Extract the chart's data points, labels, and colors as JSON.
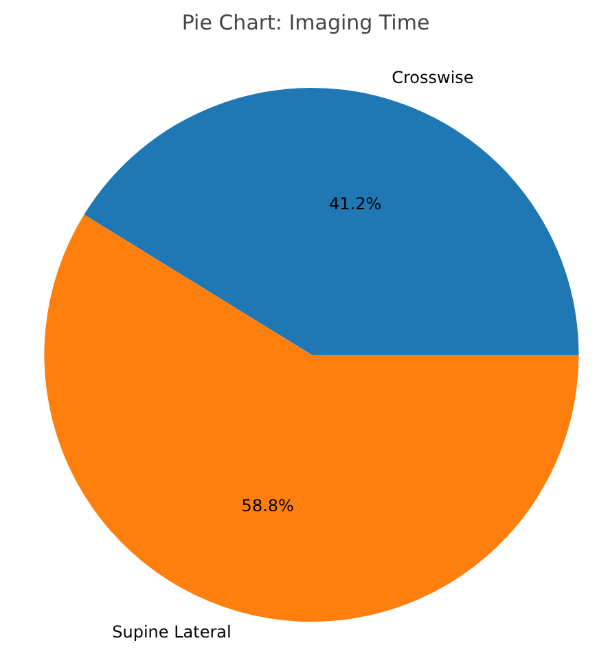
{
  "chart_data": {
    "type": "pie",
    "title": "Pie Chart: Imaging Time",
    "categories": [
      "Crosswise",
      "Supine Lateral"
    ],
    "values": [
      41.2,
      58.8
    ],
    "colors": [
      "#1f77b4",
      "#ff7f0e"
    ],
    "value_labels": [
      "41.2%",
      "58.8%"
    ]
  }
}
